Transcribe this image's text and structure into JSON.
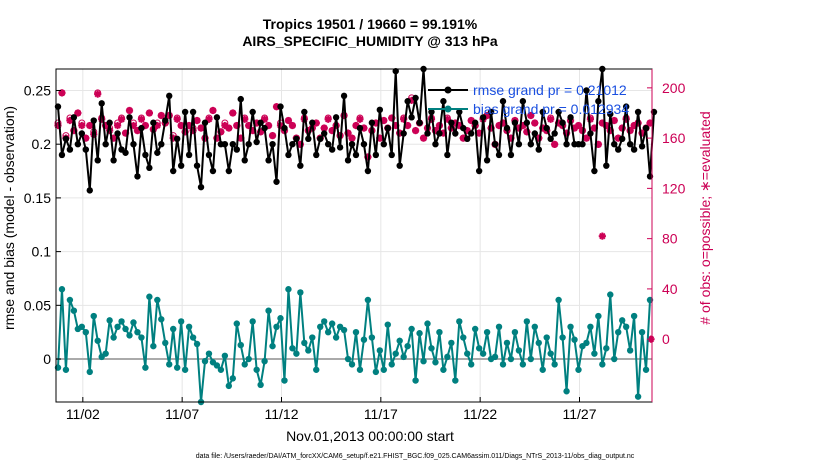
{
  "chart_data": {
    "type": "line",
    "title": "Tropics 19501 / 19660 = 99.191%",
    "subtitle": "AIRS_SPECIFIC_HUMIDITY @ 313 hPa",
    "xlabel": "Nov.01,2013 00:00:00 start",
    "ylabel_left": "rmse and bias (model - observation)",
    "ylabel_right": "# of obs: o=possible; ∗=evaluated",
    "x_tick_labels": [
      "11/02",
      "11/07",
      "11/12",
      "11/17",
      "11/22",
      "11/27"
    ],
    "x_ticks_day": [
      1.75,
      6.75,
      11.75,
      16.75,
      21.75,
      26.75
    ],
    "xlim_days": [
      0.4,
      30.4
    ],
    "ylim_left": [
      -0.04,
      0.27
    ],
    "left_tick_values": [
      0,
      0.05,
      0.1,
      0.15,
      0.2,
      0.25
    ],
    "left_tick_labels": [
      "0",
      "0.05",
      "0.1",
      "0.15",
      "0.2",
      "0.25"
    ],
    "ylim_right": [
      -50,
      215
    ],
    "right_tick_values": [
      0,
      40,
      80,
      120,
      160,
      200
    ],
    "right_tick_labels": [
      "0",
      "40",
      "80",
      "120",
      "160",
      "200"
    ],
    "grid": true,
    "legend_position": "top-right",
    "colors": {
      "rmse": "#000000",
      "bias": "#008080",
      "obs": "#cc0055",
      "zero_line": "#aaaaaa",
      "legend_text": "#1a4fe0"
    },
    "series": [
      {
        "name": "rmse grand pr = 0.21012",
        "axis": "left",
        "values": [
          0.235,
          0.19,
          0.205,
          0.195,
          0.225,
          0.2,
          0.21,
          0.195,
          0.157,
          0.222,
          0.185,
          0.238,
          0.2,
          0.22,
          0.185,
          0.21,
          0.195,
          0.192,
          0.225,
          0.2,
          0.17,
          0.215,
          0.19,
          0.178,
          0.22,
          0.192,
          0.2,
          0.222,
          0.245,
          0.175,
          0.205,
          0.18,
          0.23,
          0.19,
          0.23,
          0.18,
          0.16,
          0.22,
          0.19,
          0.175,
          0.225,
          0.2,
          0.2,
          0.175,
          0.2,
          0.195,
          0.242,
          0.185,
          0.2,
          0.23,
          0.202,
          0.22,
          0.215,
          0.185,
          0.2,
          0.165,
          0.235,
          0.215,
          0.19,
          0.2,
          0.205,
          0.18,
          0.23,
          0.205,
          0.22,
          0.19,
          0.205,
          0.21,
          0.2,
          0.195,
          0.225,
          0.197,
          0.245,
          0.185,
          0.2,
          0.19,
          0.215,
          0.2,
          0.175,
          0.22,
          0.19,
          0.232,
          0.2,
          0.215,
          0.19,
          0.268,
          0.18,
          0.21,
          0.24,
          0.225,
          0.243,
          0.22,
          0.27,
          0.21,
          0.23,
          0.2,
          0.21,
          0.24,
          0.19,
          0.22,
          0.21,
          0.23,
          0.215,
          0.205,
          0.21,
          0.22,
          0.175,
          0.225,
          0.185,
          0.23,
          0.2,
          0.19,
          0.24,
          0.215,
          0.19,
          0.22,
          0.2,
          0.24,
          0.22,
          0.2,
          0.21,
          0.195,
          0.23,
          0.215,
          0.205,
          0.21,
          0.23,
          0.22,
          0.2,
          0.225,
          0.2,
          0.2,
          0.2,
          0.25,
          0.21,
          0.175,
          0.24,
          0.27,
          0.18,
          0.228,
          0.2,
          0.195,
          0.205,
          0.235,
          0.2,
          0.195,
          0.23,
          0.198,
          0.215,
          0.17,
          0.23
        ],
        "marker": "filled-circle",
        "color": "#000000"
      },
      {
        "name": "bias grand pr = 0.012934",
        "axis": "left",
        "values": [
          -0.008,
          0.065,
          -0.01,
          0.055,
          0.045,
          0.028,
          0.03,
          0.025,
          -0.012,
          0.04,
          0.017,
          0.002,
          0.005,
          0.036,
          0.02,
          0.03,
          0.035,
          0.028,
          0.022,
          0.034,
          0.025,
          0.02,
          -0.008,
          0.058,
          0.012,
          0.055,
          0.037,
          0.015,
          -0.005,
          0.028,
          -0.008,
          0.035,
          -0.01,
          0.03,
          0.02,
          0.014,
          -0.04,
          -0.002,
          0.005,
          -0.003,
          -0.006,
          -0.01,
          0.003,
          -0.025,
          -0.018,
          0.033,
          0.013,
          -0.005,
          0.0,
          0.035,
          -0.01,
          -0.024,
          -0.002,
          0.045,
          0.012,
          0.03,
          0.038,
          -0.02,
          0.065,
          0.01,
          0.005,
          0.062,
          0.015,
          0.008,
          0.02,
          -0.01,
          0.03,
          0.035,
          0.025,
          0.033,
          0.02,
          0.03,
          0.027,
          0.0,
          -0.005,
          0.025,
          -0.01,
          0.018,
          0.055,
          0.02,
          -0.012,
          0.008,
          -0.01,
          0.032,
          -0.005,
          0.005,
          0.017,
          0.002,
          0.012,
          0.028,
          -0.02,
          0.024,
          -0.002,
          0.033,
          0.01,
          -0.003,
          0.025,
          -0.01,
          0.002,
          0.015,
          -0.02,
          0.035,
          0.02,
          0.005,
          -0.005,
          0.028,
          0.01,
          0.005,
          0.025,
          0.0,
          0.002,
          0.03,
          -0.005,
          0.015,
          0.0,
          0.025,
          0.008,
          -0.005,
          0.035,
          0.0,
          0.03,
          0.015,
          -0.01,
          0.02,
          0.005,
          -0.005,
          0.055,
          0.02,
          -0.03,
          0.03,
          0.018,
          -0.01,
          0.012,
          0.015,
          0.03,
          0.005,
          0.04,
          -0.005,
          0.01,
          0.06,
          0.0,
          0.025,
          0.036,
          0.03,
          0.008,
          0.04,
          -0.035,
          0.025,
          -0.01,
          0.055
        ],
        "marker": "filled-circle",
        "color": "#008080"
      },
      {
        "name": "obs evaluated",
        "axis": "right",
        "values": [
          170,
          196,
          160,
          174,
          166,
          180,
          170,
          160,
          170,
          163,
          195,
          175,
          170,
          166,
          160,
          170,
          175,
          164,
          182,
          170,
          166,
          175,
          170,
          180,
          167,
          170,
          178,
          172,
          178,
          160,
          175,
          170,
          165,
          170,
          166,
          174,
          168,
          160,
          175,
          182,
          160,
          165,
          170,
          168,
          180,
          170,
          160,
          175,
          170,
          166,
          172,
          165,
          175,
          170,
          162,
          185,
          170,
          166,
          174,
          170,
          160,
          155,
          175,
          166,
          168,
          172,
          160,
          168,
          175,
          166,
          170,
          162,
          178,
          164,
          160,
          170,
          175,
          168,
          145,
          166,
          172,
          160,
          174,
          168,
          176,
          170,
          164,
          175,
          170,
          190,
          166,
          172,
          160,
          168,
          175,
          166,
          170,
          164,
          175,
          168,
          172,
          170,
          160,
          166,
          174,
          170,
          164,
          175,
          178,
          168,
          155,
          170,
          172,
          166,
          160,
          174,
          168,
          170,
          165,
          178,
          172,
          160,
          168,
          166,
          175,
          155,
          172,
          170,
          164,
          174,
          168,
          170,
          166,
          160,
          175,
          168,
          155,
          172,
          170,
          166,
          174,
          160,
          168,
          175,
          166,
          170,
          172,
          164,
          168,
          172
        ],
        "marker": "asterisk",
        "color": "#cc0055"
      },
      {
        "name": "obs possible",
        "axis": "right",
        "values": [
          172,
          196,
          162,
          176,
          166,
          180,
          172,
          160,
          170,
          165,
          196,
          176,
          170,
          168,
          160,
          172,
          176,
          164,
          182,
          172,
          166,
          176,
          170,
          180,
          167,
          172,
          178,
          172,
          178,
          162,
          176,
          170,
          165,
          170,
          168,
          174,
          168,
          160,
          176,
          182,
          160,
          165,
          172,
          168,
          180,
          170,
          160,
          176,
          170,
          166,
          172,
          165,
          176,
          170,
          162,
          185,
          172,
          166,
          174,
          170,
          160,
          155,
          176,
          166,
          168,
          172,
          160,
          168,
          176,
          166,
          170,
          162,
          178,
          164,
          160,
          170,
          176,
          168,
          145,
          166,
          172,
          160,
          174,
          168,
          176,
          170,
          164,
          176,
          170,
          192,
          166,
          172,
          160,
          168,
          176,
          166,
          170,
          164,
          176,
          168,
          172,
          170,
          160,
          166,
          174,
          170,
          164,
          176,
          178,
          168,
          155,
          170,
          172,
          166,
          160,
          174,
          168,
          170,
          165,
          178,
          172,
          160,
          168,
          166,
          176,
          155,
          172,
          170,
          164,
          174,
          168,
          170,
          166,
          160,
          176,
          168,
          155,
          172,
          170,
          166,
          174,
          160,
          168,
          176,
          166,
          170,
          172,
          164,
          168,
          172
        ],
        "marker": "open-circle",
        "color": "#cc0055"
      }
    ],
    "outliers_evaluated": [
      {
        "day": 27.9,
        "count": 82
      }
    ],
    "right_edge_evaluated": {
      "day": 30.35,
      "count": 0
    }
  },
  "footer_text": "data file: /Users/raeder/DAI/ATM_forcXX/CAM6_setup/f.e21.FHIST_BGC.f09_025.CAM6assim.011/Diags_NTrS_2013-11/obs_diag_output.nc"
}
